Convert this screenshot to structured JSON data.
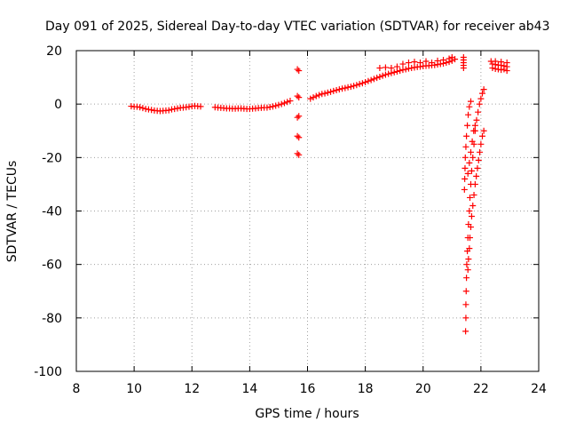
{
  "chart_data": {
    "type": "scatter",
    "title": "Day 091 of 2025, Sidereal Day-to-day VTEC variation (SDTVAR) for receiver ab43",
    "xlabel": "GPS time / hours",
    "ylabel": "SDTVAR / TECUs",
    "xlim": [
      8,
      24
    ],
    "ylim": [
      -100,
      20
    ],
    "xticks": [
      "8",
      "10",
      "12",
      "14",
      "16",
      "18",
      "20",
      "22",
      "24"
    ],
    "yticks": [
      "20",
      "0",
      "-20",
      "-40",
      "-60",
      "-80",
      "-100"
    ],
    "grid": true,
    "legend": "none",
    "marker": "+",
    "color": "#ff0000",
    "series": [
      {
        "name": "SDTVAR",
        "points": [
          [
            9.9,
            -0.8
          ],
          [
            10.0,
            -1.0
          ],
          [
            10.1,
            -1.0
          ],
          [
            10.2,
            -1.2
          ],
          [
            10.3,
            -1.5
          ],
          [
            10.4,
            -1.8
          ],
          [
            10.5,
            -2.0
          ],
          [
            10.6,
            -2.2
          ],
          [
            10.7,
            -2.4
          ],
          [
            10.8,
            -2.5
          ],
          [
            10.9,
            -2.6
          ],
          [
            11.0,
            -2.5
          ],
          [
            11.1,
            -2.4
          ],
          [
            11.2,
            -2.3
          ],
          [
            11.3,
            -2.0
          ],
          [
            11.4,
            -1.8
          ],
          [
            11.5,
            -1.6
          ],
          [
            11.6,
            -1.4
          ],
          [
            11.7,
            -1.3
          ],
          [
            11.8,
            -1.2
          ],
          [
            11.9,
            -1.0
          ],
          [
            12.0,
            -0.8
          ],
          [
            12.1,
            -0.7
          ],
          [
            12.2,
            -0.8
          ],
          [
            12.3,
            -0.9
          ],
          [
            12.8,
            -1.2
          ],
          [
            12.9,
            -1.3
          ],
          [
            13.0,
            -1.4
          ],
          [
            13.1,
            -1.5
          ],
          [
            13.2,
            -1.6
          ],
          [
            13.3,
            -1.6
          ],
          [
            13.4,
            -1.7
          ],
          [
            13.5,
            -1.7
          ],
          [
            13.6,
            -1.6
          ],
          [
            13.7,
            -1.6
          ],
          [
            13.8,
            -1.7
          ],
          [
            13.9,
            -1.8
          ],
          [
            14.0,
            -1.8
          ],
          [
            14.1,
            -1.7
          ],
          [
            14.2,
            -1.6
          ],
          [
            14.3,
            -1.5
          ],
          [
            14.4,
            -1.4
          ],
          [
            14.5,
            -1.3
          ],
          [
            14.6,
            -1.3
          ],
          [
            14.7,
            -1.1
          ],
          [
            14.8,
            -0.9
          ],
          [
            14.9,
            -0.6
          ],
          [
            15.0,
            -0.3
          ],
          [
            15.1,
            0.0
          ],
          [
            15.2,
            0.4
          ],
          [
            15.3,
            0.8
          ],
          [
            15.4,
            1.2
          ],
          [
            15.65,
            13.0
          ],
          [
            15.7,
            12.5
          ],
          [
            15.65,
            3.0
          ],
          [
            15.7,
            2.5
          ],
          [
            15.65,
            -5.0
          ],
          [
            15.7,
            -4.5
          ],
          [
            15.65,
            -12.0
          ],
          [
            15.7,
            -12.5
          ],
          [
            15.65,
            -18.5
          ],
          [
            15.7,
            -19.0
          ],
          [
            16.1,
            2.0
          ],
          [
            16.2,
            2.5
          ],
          [
            16.3,
            3.0
          ],
          [
            16.4,
            3.4
          ],
          [
            16.5,
            3.8
          ],
          [
            16.6,
            4.0
          ],
          [
            16.7,
            4.3
          ],
          [
            16.8,
            4.6
          ],
          [
            16.9,
            4.9
          ],
          [
            17.0,
            5.2
          ],
          [
            17.1,
            5.5
          ],
          [
            17.2,
            5.8
          ],
          [
            17.3,
            6.0
          ],
          [
            17.4,
            6.3
          ],
          [
            17.5,
            6.5
          ],
          [
            17.6,
            6.8
          ],
          [
            17.7,
            7.1
          ],
          [
            17.8,
            7.5
          ],
          [
            17.9,
            7.8
          ],
          [
            18.0,
            8.2
          ],
          [
            18.1,
            8.6
          ],
          [
            18.2,
            9.0
          ],
          [
            18.3,
            9.4
          ],
          [
            18.4,
            9.8
          ],
          [
            18.5,
            10.2
          ],
          [
            18.6,
            10.6
          ],
          [
            18.7,
            11.0
          ],
          [
            18.8,
            11.3
          ],
          [
            18.9,
            11.6
          ],
          [
            19.0,
            11.9
          ],
          [
            19.1,
            12.2
          ],
          [
            19.2,
            12.5
          ],
          [
            19.3,
            12.8
          ],
          [
            19.4,
            13.0
          ],
          [
            19.5,
            13.3
          ],
          [
            19.6,
            13.5
          ],
          [
            19.7,
            13.7
          ],
          [
            19.8,
            13.9
          ],
          [
            19.9,
            14.0
          ],
          [
            20.0,
            14.2
          ],
          [
            20.1,
            14.3
          ],
          [
            20.2,
            14.4
          ],
          [
            20.3,
            14.5
          ],
          [
            20.4,
            14.6
          ],
          [
            20.5,
            14.8
          ],
          [
            20.6,
            15.0
          ],
          [
            20.7,
            15.2
          ],
          [
            20.8,
            15.5
          ],
          [
            20.9,
            15.8
          ],
          [
            21.0,
            16.2
          ],
          [
            21.1,
            16.8
          ],
          [
            18.5,
            13.5
          ],
          [
            18.7,
            13.7
          ],
          [
            18.9,
            13.5
          ],
          [
            19.1,
            14.0
          ],
          [
            19.3,
            15.0
          ],
          [
            19.5,
            15.5
          ],
          [
            19.7,
            15.8
          ],
          [
            19.9,
            15.5
          ],
          [
            20.1,
            16.0
          ],
          [
            20.3,
            15.5
          ],
          [
            20.5,
            16.2
          ],
          [
            20.7,
            16.5
          ],
          [
            20.9,
            17.0
          ],
          [
            21.0,
            17.5
          ],
          [
            21.4,
            17.5
          ],
          [
            21.4,
            16.5
          ],
          [
            21.4,
            15.5
          ],
          [
            21.4,
            14.5
          ],
          [
            21.4,
            13.5
          ],
          [
            22.4,
            15.0
          ],
          [
            22.5,
            14.8
          ],
          [
            22.6,
            14.6
          ],
          [
            22.7,
            14.5
          ],
          [
            22.8,
            14.3
          ],
          [
            22.9,
            14.0
          ],
          [
            22.4,
            13.5
          ],
          [
            22.5,
            13.2
          ],
          [
            22.6,
            13.0
          ],
          [
            22.7,
            12.8
          ],
          [
            22.8,
            13.0
          ],
          [
            22.9,
            12.5
          ],
          [
            22.35,
            16.0
          ],
          [
            22.5,
            16.0
          ],
          [
            22.7,
            15.8
          ],
          [
            22.9,
            15.5
          ],
          [
            21.47,
            -85.0
          ],
          [
            21.48,
            -80.0
          ],
          [
            21.48,
            -75.0
          ],
          [
            21.49,
            -70.0
          ],
          [
            21.5,
            -65.0
          ],
          [
            21.51,
            -60.0
          ],
          [
            21.53,
            -55.0
          ],
          [
            21.55,
            -50.0
          ],
          [
            21.57,
            -45.0
          ],
          [
            21.6,
            -40.0
          ],
          [
            21.62,
            -35.0
          ],
          [
            21.65,
            -30.0
          ],
          [
            21.68,
            -25.0
          ],
          [
            21.72,
            -20.0
          ],
          [
            21.76,
            -15.0
          ],
          [
            21.8,
            -10.0
          ],
          [
            21.85,
            -6.0
          ],
          [
            21.9,
            -3.0
          ],
          [
            21.95,
            0.0
          ],
          [
            22.0,
            2.0
          ],
          [
            22.05,
            4.0
          ],
          [
            22.1,
            5.5
          ],
          [
            21.43,
            -32.0
          ],
          [
            21.44,
            -28.0
          ],
          [
            21.45,
            -24.0
          ],
          [
            21.46,
            -20.0
          ],
          [
            21.48,
            -16.0
          ],
          [
            21.5,
            -12.0
          ],
          [
            21.53,
            -8.0
          ],
          [
            21.56,
            -4.0
          ],
          [
            21.6,
            -1.0
          ],
          [
            21.65,
            1.0
          ],
          [
            21.55,
            -62.0
          ],
          [
            21.57,
            -58.0
          ],
          [
            21.6,
            -54.0
          ],
          [
            21.62,
            -50.0
          ],
          [
            21.65,
            -46.0
          ],
          [
            21.68,
            -42.0
          ],
          [
            21.72,
            -38.0
          ],
          [
            21.76,
            -34.0
          ],
          [
            21.8,
            -30.0
          ],
          [
            21.84,
            -27.0
          ],
          [
            21.88,
            -24.0
          ],
          [
            21.92,
            -21.0
          ],
          [
            21.96,
            -18.0
          ],
          [
            22.0,
            -15.0
          ],
          [
            22.05,
            -12.0
          ],
          [
            22.1,
            -10.0
          ],
          [
            21.55,
            -26.0
          ],
          [
            21.6,
            -22.0
          ],
          [
            21.65,
            -18.0
          ],
          [
            21.7,
            -14.0
          ],
          [
            21.75,
            -10.0
          ],
          [
            21.8,
            -8.0
          ]
        ]
      }
    ]
  }
}
